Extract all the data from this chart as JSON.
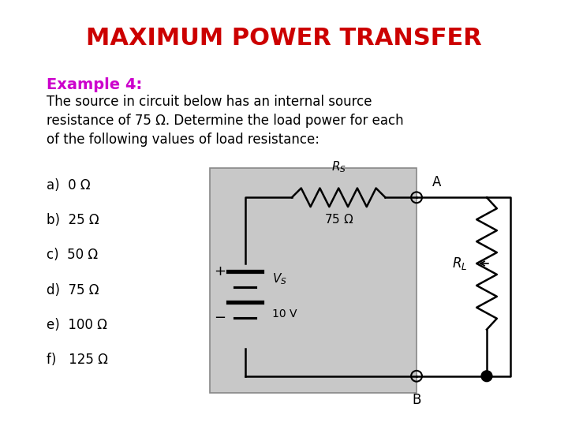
{
  "title": "MAXIMUM POWER TRANSFER",
  "title_color": "#CC0000",
  "title_fontsize": 22,
  "example_label": "Example 4:",
  "example_color": "#CC00CC",
  "example_fontsize": 14,
  "body_text": "The source in circuit below has an internal source\nresistance of 75 Ω. Determine the load power for each\nof the following values of load resistance:",
  "body_fontsize": 12,
  "items": [
    "a)  0 Ω",
    "b)  25 Ω",
    "c)  50 Ω",
    "d)  75 Ω",
    "e)  100 Ω",
    "f)   125 Ω"
  ],
  "item_fontsize": 12,
  "bg_color": "#ffffff",
  "circuit_box_color": "#c8c8c8"
}
